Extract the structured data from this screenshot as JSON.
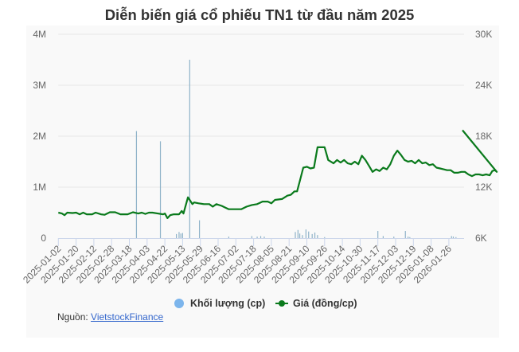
{
  "title": "Diễn biến giá cổ phiếu TN1 từ đầu năm 2025",
  "legend": {
    "volume_label": "Khối lượng (cp)",
    "price_label": "Giá (đồng/cp)"
  },
  "source": {
    "prefix": "Nguồn:",
    "link_text": "VietstockFinance"
  },
  "colors": {
    "price_line": "#0a7a1c",
    "volume_bar": "#7cb5ec",
    "grid": "#e6e6e6",
    "card_bg": "#f9f9f9"
  },
  "chart_data": {
    "type": "line+bar",
    "title": "Diễn biến giá cổ phiếu TN1 từ đầu năm 2025",
    "xlabel": "",
    "ylabel_left": "Khối lượng (cp)",
    "ylabel_right": "Giá (đồng/cp)",
    "y_left_ticks": [
      "0",
      "1M",
      "2M",
      "3M",
      "4M"
    ],
    "y_left_range": [
      0,
      4000000
    ],
    "y_right_ticks": [
      "6K",
      "12K",
      "18K",
      "24K",
      "30K"
    ],
    "y_right_range": [
      6000,
      30000
    ],
    "grid": true,
    "legend_position": "bottom",
    "x_tick_labels": [
      "2025-01-02",
      "2025-01-20",
      "2025-02-12",
      "2025-02-28",
      "2025-03-18",
      "2025-04-03",
      "2025-04-22",
      "2025-05-13",
      "2025-05-29",
      "2025-06-16",
      "2025-07-02",
      "2025-07-18",
      "2025-08-05",
      "2025-08-21",
      "2025-09-10",
      "2025-09-26",
      "2025-10-14",
      "2025-10-30",
      "2025-11-17",
      "2025-12-03",
      "2025-12-19",
      "2026-01-08",
      "2026-01-26"
    ],
    "series": [
      {
        "name": "Giá (đồng/cp)",
        "type": "line",
        "axis": "right",
        "points_idx_price": [
          [
            0.0,
            9000
          ],
          [
            0.2,
            8900
          ],
          [
            0.35,
            8700
          ],
          [
            0.5,
            9000
          ],
          [
            0.8,
            8950
          ],
          [
            1.0,
            9000
          ],
          [
            1.2,
            8800
          ],
          [
            1.4,
            9000
          ],
          [
            1.6,
            8800
          ],
          [
            1.9,
            8800
          ],
          [
            2.1,
            9000
          ],
          [
            2.4,
            8800
          ],
          [
            2.6,
            8750
          ],
          [
            2.9,
            9050
          ],
          [
            3.2,
            9050
          ],
          [
            3.5,
            8800
          ],
          [
            3.9,
            8800
          ],
          [
            4.2,
            9050
          ],
          [
            4.5,
            8900
          ],
          [
            4.7,
            9000
          ],
          [
            4.9,
            8850
          ],
          [
            5.1,
            9000
          ],
          [
            5.3,
            9000
          ],
          [
            5.6,
            8900
          ],
          [
            5.9,
            8800
          ],
          [
            6.0,
            8900
          ],
          [
            6.15,
            8350
          ],
          [
            6.3,
            8700
          ],
          [
            6.5,
            8800
          ],
          [
            6.8,
            8800
          ],
          [
            6.95,
            9200
          ],
          [
            7.05,
            8900
          ],
          [
            7.3,
            10800
          ],
          [
            7.4,
            10500
          ],
          [
            7.55,
            10000
          ],
          [
            7.65,
            10200
          ],
          [
            7.9,
            10100
          ],
          [
            8.2,
            10000
          ],
          [
            8.5,
            10000
          ],
          [
            8.7,
            9700
          ],
          [
            8.9,
            10000
          ],
          [
            9.2,
            9800
          ],
          [
            9.4,
            9600
          ],
          [
            9.6,
            9400
          ],
          [
            10.0,
            9400
          ],
          [
            10.3,
            9400
          ],
          [
            10.6,
            9700
          ],
          [
            10.9,
            9900
          ],
          [
            11.2,
            10000
          ],
          [
            11.5,
            10300
          ],
          [
            11.8,
            10300
          ],
          [
            12.0,
            10100
          ],
          [
            12.2,
            10500
          ],
          [
            12.6,
            10600
          ],
          [
            12.9,
            11000
          ],
          [
            13.1,
            11100
          ],
          [
            13.3,
            11500
          ],
          [
            13.45,
            11500
          ],
          [
            13.6,
            12700
          ],
          [
            13.8,
            14300
          ],
          [
            14.0,
            14400
          ],
          [
            14.2,
            14200
          ],
          [
            14.4,
            14300
          ],
          [
            14.6,
            16700
          ],
          [
            14.8,
            16700
          ],
          [
            15.0,
            16700
          ],
          [
            15.2,
            15200
          ],
          [
            15.5,
            14800
          ],
          [
            15.7,
            15200
          ],
          [
            15.9,
            14900
          ],
          [
            16.1,
            15200
          ],
          [
            16.3,
            14800
          ],
          [
            16.5,
            14700
          ],
          [
            16.7,
            15000
          ],
          [
            16.9,
            14700
          ],
          [
            17.1,
            15700
          ],
          [
            17.3,
            15200
          ],
          [
            17.5,
            14500
          ],
          [
            17.7,
            13800
          ],
          [
            17.9,
            14100
          ],
          [
            18.1,
            13900
          ],
          [
            18.3,
            14300
          ],
          [
            18.5,
            14100
          ],
          [
            18.7,
            14700
          ],
          [
            18.9,
            15700
          ],
          [
            19.1,
            16300
          ],
          [
            19.3,
            15800
          ],
          [
            19.5,
            15200
          ],
          [
            19.7,
            15000
          ],
          [
            19.9,
            15100
          ],
          [
            20.1,
            14800
          ],
          [
            20.3,
            15200
          ],
          [
            20.5,
            14800
          ],
          [
            20.7,
            14900
          ],
          [
            20.9,
            14600
          ],
          [
            21.1,
            14700
          ],
          [
            21.3,
            14300
          ],
          [
            21.5,
            14200
          ],
          [
            21.7,
            14100
          ],
          [
            21.9,
            14000
          ],
          [
            22.1,
            14000
          ],
          [
            22.3,
            13700
          ],
          [
            22.5,
            13700
          ],
          [
            22.7,
            13800
          ],
          [
            22.9,
            13800
          ],
          [
            23.1,
            13500
          ],
          [
            23.3,
            13300
          ],
          [
            23.5,
            13500
          ],
          [
            23.7,
            13500
          ],
          [
            23.9,
            13400
          ],
          [
            24.1,
            13500
          ],
          [
            24.3,
            13400
          ],
          [
            24.45,
            13900
          ],
          [
            24.6,
            14000
          ],
          [
            24.7,
            13800
          ]
        ]
      },
      {
        "name": "Khối lượng (cp)",
        "type": "bar",
        "axis": "left",
        "bars_idx_volume": [
          [
            4.4,
            2100000
          ],
          [
            5.75,
            1900000
          ],
          [
            6.65,
            80000
          ],
          [
            6.8,
            120000
          ],
          [
            6.9,
            90000
          ],
          [
            7.0,
            100000
          ],
          [
            7.4,
            3500000
          ],
          [
            7.95,
            350000
          ],
          [
            9.6,
            30000
          ],
          [
            10.9,
            40000
          ],
          [
            11.2,
            30000
          ],
          [
            11.4,
            40000
          ],
          [
            11.6,
            30000
          ],
          [
            13.35,
            120000
          ],
          [
            13.5,
            160000
          ],
          [
            13.6,
            90000
          ],
          [
            13.75,
            60000
          ],
          [
            13.95,
            170000
          ],
          [
            14.1,
            130000
          ],
          [
            14.3,
            80000
          ],
          [
            14.45,
            110000
          ],
          [
            14.6,
            60000
          ],
          [
            15.0,
            20000
          ],
          [
            18.0,
            140000
          ],
          [
            18.3,
            40000
          ],
          [
            18.9,
            30000
          ],
          [
            19.55,
            140000
          ],
          [
            19.7,
            30000
          ],
          [
            19.8,
            20000
          ],
          [
            22.15,
            40000
          ],
          [
            22.25,
            30000
          ],
          [
            22.4,
            20000
          ]
        ]
      }
    ]
  }
}
